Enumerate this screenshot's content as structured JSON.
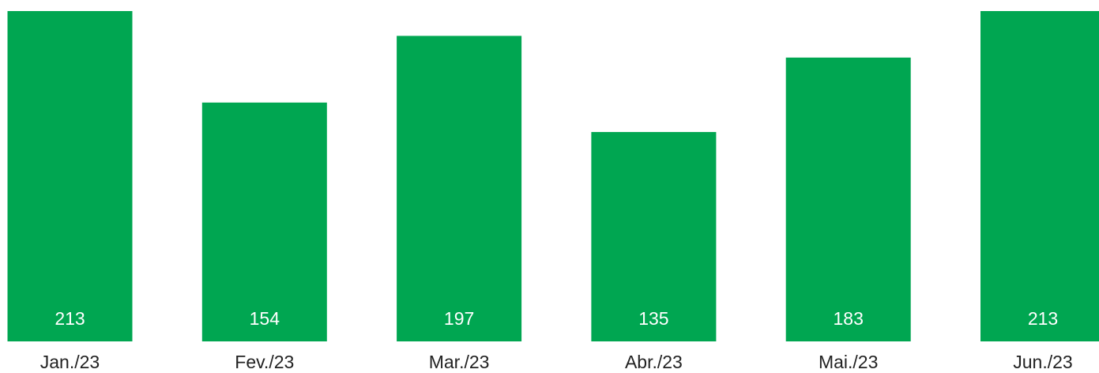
{
  "chart_data": {
    "type": "bar",
    "categories": [
      "Jan./23",
      "Fev./23",
      "Mar./23",
      "Abr./23",
      "Mai./23",
      "Jun./23"
    ],
    "values": [
      213,
      154,
      197,
      135,
      183,
      213
    ],
    "color": "#00a651"
  }
}
